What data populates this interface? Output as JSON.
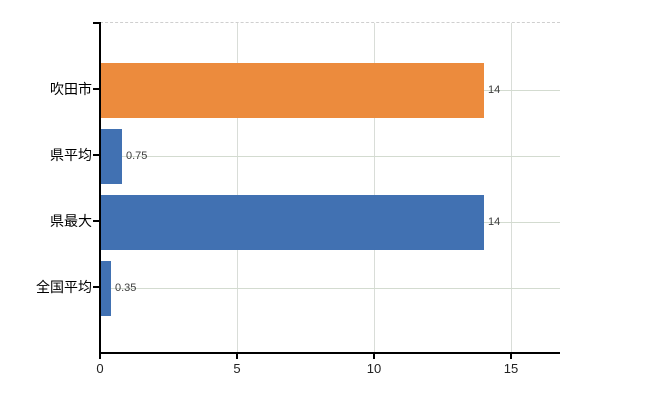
{
  "chart_data": {
    "type": "bar",
    "orientation": "horizontal",
    "title": "",
    "categories": [
      "吹田市",
      "県平均",
      "県最大",
      "全国平均"
    ],
    "values": [
      14,
      0.75,
      14,
      0.35
    ],
    "value_labels": [
      "14",
      "0.75",
      "14",
      "0.35"
    ],
    "bar_colors": [
      "#ec8b3d",
      "#4171b2",
      "#4171b2",
      "#4171b2"
    ],
    "xlim": [
      0,
      16.8
    ],
    "x_ticks": [
      0,
      5,
      10,
      15
    ],
    "x_tick_labels": [
      "0",
      "5",
      "10",
      "15"
    ],
    "grid": true,
    "legend": "none"
  },
  "colors": {
    "bar_orange": "#ec8b3d",
    "bar_blue": "#4171b2",
    "gridline_vertical": "#d9ddd8",
    "gridline_horizontal": "#d3dbd0",
    "plot_top_border": "#cfcfcf",
    "axis": "#000000",
    "category_text": "#000000",
    "value_text": "#3c3c3c",
    "tick_text": "#222222",
    "background": "#ffffff"
  }
}
